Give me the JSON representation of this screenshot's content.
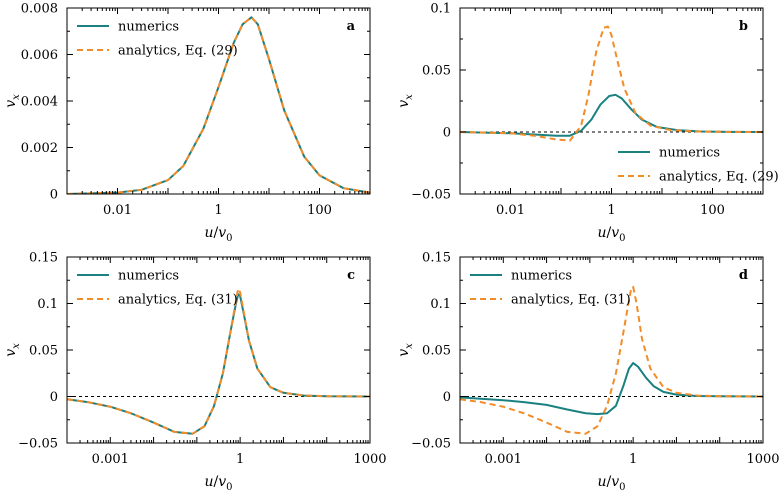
{
  "chart_data": [
    {
      "panel": "a",
      "type": "line",
      "xscale": "log",
      "xlabel": "u/v0",
      "ylabel": "vx",
      "xlim": [
        0.001,
        1000
      ],
      "ylim": [
        0,
        0.008
      ],
      "xticks": [
        0.01,
        1,
        100
      ],
      "xtick_labels": [
        "0.01",
        "1",
        "100"
      ],
      "yticks": [
        0,
        0.002,
        0.004,
        0.006,
        0.008
      ],
      "ytick_labels": [
        "0",
        "0.002",
        "0.004",
        "0.006",
        "0.008"
      ],
      "zero_line": false,
      "legend_position": "top-left",
      "colors": {
        "numerics": "#1a8080",
        "analytics": "#f28c28"
      },
      "series": [
        {
          "name": "numerics",
          "style": "solid",
          "x": [
            0.001,
            0.01,
            0.03,
            0.1,
            0.2,
            0.5,
            1,
            2,
            3,
            4.5,
            6,
            10,
            20,
            50,
            100,
            300,
            1000
          ],
          "y": [
            0,
            6e-05,
            0.00018,
            0.0006,
            0.0012,
            0.0028,
            0.0046,
            0.0065,
            0.0073,
            0.0076,
            0.0073,
            0.0058,
            0.0036,
            0.0016,
            0.0008,
            0.00025,
            6e-05
          ]
        },
        {
          "name": "analytics, Eq. (29)",
          "style": "dashed",
          "x": [
            0.001,
            0.01,
            0.03,
            0.1,
            0.2,
            0.5,
            1,
            2,
            3,
            4.5,
            6,
            10,
            20,
            50,
            100,
            300,
            1000
          ],
          "y": [
            0,
            6e-05,
            0.00018,
            0.0006,
            0.0012,
            0.0028,
            0.0046,
            0.0065,
            0.0073,
            0.0076,
            0.0073,
            0.0058,
            0.0036,
            0.0016,
            0.0008,
            0.00025,
            6e-05
          ]
        }
      ]
    },
    {
      "panel": "b",
      "type": "line",
      "xscale": "log",
      "xlabel": "u/v0",
      "ylabel": "vx",
      "xlim": [
        0.001,
        1000
      ],
      "ylim": [
        -0.05,
        0.1
      ],
      "xticks": [
        0.01,
        1,
        100
      ],
      "xtick_labels": [
        "0.01",
        "1",
        "100"
      ],
      "yticks": [
        -0.05,
        0,
        0.05,
        0.1
      ],
      "ytick_labels": [
        "−0.05",
        "0",
        "0.05",
        "0.1"
      ],
      "zero_line": true,
      "legend_position": "bottom-right",
      "colors": {
        "numerics": "#1a8080",
        "analytics": "#f28c28"
      },
      "series": [
        {
          "name": "numerics",
          "style": "solid",
          "x": [
            0.001,
            0.01,
            0.03,
            0.08,
            0.15,
            0.25,
            0.4,
            0.6,
            0.9,
            1.2,
            1.6,
            2.5,
            4,
            8,
            20,
            60,
            200,
            1000
          ],
          "y": [
            0,
            -0.001,
            -0.002,
            -0.003,
            -0.003,
            0.001,
            0.01,
            0.022,
            0.029,
            0.03,
            0.027,
            0.018,
            0.01,
            0.004,
            0.0015,
            0.0004,
            0.0001,
            0
          ]
        },
        {
          "name": "analytics, Eq. (29)",
          "style": "dashed",
          "x": [
            0.001,
            0.01,
            0.03,
            0.08,
            0.15,
            0.25,
            0.35,
            0.5,
            0.7,
            0.85,
            1,
            1.3,
            1.8,
            3,
            6,
            15,
            50,
            200,
            1000
          ],
          "y": [
            0,
            -0.001,
            -0.003,
            -0.006,
            -0.007,
            0.005,
            0.03,
            0.065,
            0.084,
            0.085,
            0.078,
            0.058,
            0.035,
            0.015,
            0.005,
            0.0015,
            0.0004,
            0.0001,
            0
          ]
        }
      ]
    },
    {
      "panel": "c",
      "type": "line",
      "xscale": "log",
      "xlabel": "u/v0",
      "ylabel": "vx",
      "xlim": [
        0.0001,
        1000
      ],
      "ylim": [
        -0.05,
        0.15
      ],
      "xticks": [
        0.001,
        1,
        1000
      ],
      "xtick_labels": [
        "0.001",
        "1",
        "1000"
      ],
      "yticks": [
        -0.05,
        0,
        0.05,
        0.1,
        0.15
      ],
      "ytick_labels": [
        "−0.05",
        "0",
        "0.05",
        "0.1",
        "0.15"
      ],
      "zero_line": true,
      "legend_position": "top-left",
      "colors": {
        "numerics": "#1a8080",
        "analytics": "#f28c28"
      },
      "series": [
        {
          "name": "numerics",
          "style": "solid",
          "x": [
            0.0001,
            0.0003,
            0.001,
            0.003,
            0.01,
            0.03,
            0.08,
            0.15,
            0.25,
            0.4,
            0.6,
            0.8,
            0.9,
            1,
            1.2,
            1.6,
            2.5,
            5,
            10,
            30,
            100,
            1000
          ],
          "y": [
            -0.003,
            -0.006,
            -0.011,
            -0.018,
            -0.028,
            -0.038,
            -0.04,
            -0.032,
            -0.01,
            0.025,
            0.07,
            0.1,
            0.11,
            0.108,
            0.09,
            0.06,
            0.03,
            0.01,
            0.004,
            0.001,
            0.0003,
            0
          ]
        },
        {
          "name": "analytics, Eq. (31)",
          "style": "dashed",
          "x": [
            0.0001,
            0.0003,
            0.001,
            0.003,
            0.01,
            0.03,
            0.08,
            0.15,
            0.25,
            0.4,
            0.6,
            0.8,
            0.9,
            1,
            1.2,
            1.6,
            2.5,
            5,
            10,
            30,
            100,
            1000
          ],
          "y": [
            -0.003,
            -0.006,
            -0.011,
            -0.018,
            -0.028,
            -0.038,
            -0.04,
            -0.032,
            -0.01,
            0.025,
            0.07,
            0.103,
            0.116,
            0.112,
            0.092,
            0.06,
            0.03,
            0.01,
            0.004,
            0.001,
            0.0003,
            0
          ]
        }
      ]
    },
    {
      "panel": "d",
      "type": "line",
      "xscale": "log",
      "xlabel": "u/v0",
      "ylabel": "vx",
      "xlim": [
        0.0001,
        1000
      ],
      "ylim": [
        -0.05,
        0.15
      ],
      "xticks": [
        0.001,
        1,
        1000
      ],
      "xtick_labels": [
        "0.001",
        "1",
        "1000"
      ],
      "yticks": [
        -0.05,
        0,
        0.05,
        0.1,
        0.15
      ],
      "ytick_labels": [
        "−0.05",
        "0",
        "0.05",
        "0.1",
        "0.15"
      ],
      "zero_line": true,
      "legend_position": "top-left",
      "colors": {
        "numerics": "#1a8080",
        "analytics": "#f28c28"
      },
      "series": [
        {
          "name": "numerics",
          "style": "solid",
          "x": [
            0.0001,
            0.001,
            0.003,
            0.01,
            0.03,
            0.08,
            0.15,
            0.25,
            0.4,
            0.6,
            0.8,
            1,
            1.3,
            2,
            3,
            5,
            10,
            30,
            100,
            1000
          ],
          "y": [
            -0.001,
            -0.004,
            -0.006,
            -0.009,
            -0.014,
            -0.018,
            -0.019,
            -0.018,
            -0.01,
            0.012,
            0.03,
            0.036,
            0.032,
            0.02,
            0.011,
            0.005,
            0.002,
            0.0006,
            0.0002,
            0
          ]
        },
        {
          "name": "analytics, Eq. (31)",
          "style": "dashed",
          "x": [
            0.0001,
            0.0003,
            0.001,
            0.003,
            0.01,
            0.03,
            0.08,
            0.15,
            0.25,
            0.4,
            0.6,
            0.8,
            0.9,
            1,
            1.2,
            1.6,
            2.5,
            5,
            10,
            30,
            100,
            1000
          ],
          "y": [
            -0.003,
            -0.006,
            -0.011,
            -0.018,
            -0.028,
            -0.038,
            -0.04,
            -0.032,
            -0.01,
            0.025,
            0.07,
            0.103,
            0.116,
            0.118,
            0.1,
            0.062,
            0.03,
            0.01,
            0.004,
            0.001,
            0.0003,
            0
          ]
        }
      ]
    }
  ]
}
